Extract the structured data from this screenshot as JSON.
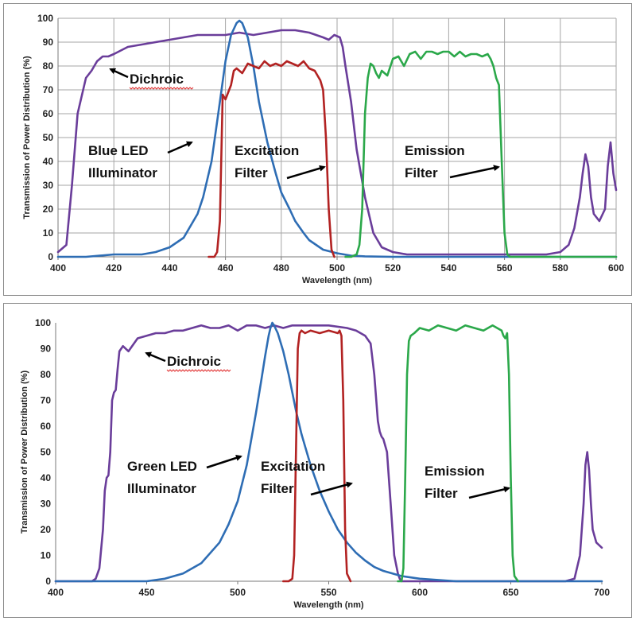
{
  "chart_data": [
    {
      "type": "line",
      "ylabel": "Transmission of Power Distribution (%)",
      "xlabel": "Wavelength (nm)",
      "xlim": [
        400,
        600
      ],
      "ylim": [
        0,
        100
      ],
      "xticks": [
        "400",
        "420",
        "440",
        "460",
        "480",
        "500",
        "520",
        "540",
        "560",
        "580",
        "600"
      ],
      "yticks": [
        "0",
        "10",
        "20",
        "30",
        "40",
        "50",
        "60",
        "70",
        "80",
        "90",
        "100"
      ],
      "grid": true,
      "annotations": [
        {
          "id": "dichroic",
          "text": [
            "Dichroic"
          ]
        },
        {
          "id": "led",
          "text": [
            "Blue LED",
            "Illuminator"
          ]
        },
        {
          "id": "excitation",
          "text": [
            "Excitation",
            "Filter"
          ]
        },
        {
          "id": "emission",
          "text": [
            "Emission",
            "Filter"
          ]
        }
      ],
      "series": [
        {
          "id": "dichroic",
          "color": "#6a3d9a",
          "x": [
            400,
            403,
            405,
            407,
            410,
            412,
            414,
            416,
            418,
            420,
            425,
            430,
            435,
            440,
            445,
            450,
            455,
            460,
            465,
            470,
            475,
            480,
            485,
            490,
            495,
            497,
            499,
            501,
            502,
            503,
            505,
            507,
            510,
            513,
            516,
            520,
            525,
            530,
            540,
            550,
            560,
            570,
            575,
            580,
            583,
            585,
            587,
            588,
            589,
            590,
            591,
            592,
            594,
            596,
            597,
            598,
            599,
            600
          ],
          "y": [
            2,
            5,
            30,
            60,
            75,
            78,
            82,
            84,
            84,
            85,
            88,
            89,
            90,
            91,
            92,
            93,
            93,
            93,
            94,
            93,
            94,
            95,
            95,
            94,
            92,
            91,
            93,
            92,
            88,
            80,
            65,
            45,
            25,
            10,
            4,
            2,
            1,
            1,
            1,
            1,
            1,
            1,
            1,
            2,
            5,
            12,
            25,
            35,
            43,
            38,
            25,
            18,
            15,
            20,
            38,
            48,
            35,
            28
          ]
        },
        {
          "id": "led",
          "color": "#2e6db4",
          "x": [
            400,
            405,
            410,
            420,
            430,
            435,
            440,
            445,
            450,
            452,
            455,
            458,
            460,
            462,
            464,
            465,
            466,
            468,
            470,
            472,
            475,
            478,
            480,
            483,
            485,
            488,
            490,
            495,
            500,
            505,
            510,
            520,
            530,
            540,
            550,
            600
          ],
          "y": [
            0,
            0,
            0,
            1,
            1,
            2,
            4,
            8,
            18,
            25,
            40,
            65,
            82,
            93,
            98,
            99,
            98,
            92,
            80,
            65,
            48,
            35,
            27,
            20,
            15,
            10,
            7,
            3,
            1.5,
            0.5,
            0.2,
            0,
            0,
            0,
            0,
            0
          ]
        },
        {
          "id": "excitation",
          "color": "#b22222",
          "x": [
            454,
            456,
            457,
            458,
            459,
            460,
            461,
            462,
            463,
            464,
            466,
            468,
            470,
            472,
            474,
            476,
            478,
            480,
            482,
            484,
            486,
            488,
            490,
            492,
            494,
            495,
            496,
            497,
            498,
            499
          ],
          "y": [
            0,
            0,
            2,
            15,
            68,
            66,
            69,
            72,
            78,
            79,
            77,
            81,
            80,
            79,
            82,
            80,
            81,
            80,
            82,
            81,
            80,
            82,
            79,
            78,
            74,
            70,
            50,
            20,
            3,
            0
          ]
        },
        {
          "id": "emission",
          "color": "#2ba84a",
          "x": [
            503,
            505,
            507,
            508,
            509,
            510,
            511,
            512,
            513,
            514,
            515,
            516,
            518,
            520,
            522,
            524,
            526,
            528,
            530,
            532,
            534,
            536,
            538,
            540,
            542,
            544,
            546,
            548,
            550,
            552,
            554,
            555,
            556,
            557,
            558,
            559,
            560,
            561,
            562,
            565,
            600
          ],
          "y": [
            0,
            0,
            1,
            5,
            20,
            60,
            75,
            81,
            80,
            77,
            75,
            78,
            76,
            83,
            84,
            80,
            85,
            86,
            83,
            86,
            86,
            85,
            86,
            86,
            84,
            86,
            84,
            85,
            85,
            84,
            85,
            83,
            80,
            75,
            72,
            40,
            10,
            1,
            0,
            0,
            0
          ]
        }
      ]
    },
    {
      "type": "line",
      "ylabel": "Transmission of Power Distribution (%)",
      "xlabel": "Wavelength (nm)",
      "xlim": [
        400,
        700
      ],
      "ylim": [
        0,
        100
      ],
      "xticks": [
        "400",
        "450",
        "500",
        "550",
        "600",
        "650",
        "700"
      ],
      "yticks": [
        "0",
        "10",
        "20",
        "30",
        "40",
        "50",
        "60",
        "70",
        "80",
        "90",
        "100"
      ],
      "grid": false,
      "annotations": [
        {
          "id": "dichroic",
          "text": [
            "Dichroic"
          ]
        },
        {
          "id": "led",
          "text": [
            "Green LED",
            "Illuminator"
          ]
        },
        {
          "id": "excitation",
          "text": [
            "Excitation",
            "Filter"
          ]
        },
        {
          "id": "emission",
          "text": [
            "Emission",
            "Filter"
          ]
        }
      ],
      "series": [
        {
          "id": "dichroic",
          "color": "#6a3d9a",
          "x": [
            400,
            420,
            422,
            424,
            426,
            427,
            428,
            429,
            430,
            431,
            432,
            433,
            434,
            435,
            437,
            440,
            445,
            450,
            455,
            460,
            465,
            470,
            480,
            485,
            490,
            495,
            500,
            505,
            510,
            515,
            520,
            525,
            530,
            540,
            550,
            560,
            565,
            570,
            573,
            575,
            577,
            578,
            579,
            580,
            582,
            584,
            586,
            588,
            589,
            590,
            591,
            592,
            595,
            600,
            650,
            680,
            685,
            688,
            690,
            691,
            692,
            693,
            694,
            695,
            697,
            700
          ],
          "y": [
            0,
            0,
            1,
            5,
            20,
            35,
            40,
            41,
            50,
            70,
            73,
            74,
            82,
            89,
            91,
            89,
            94,
            95,
            96,
            96,
            97,
            97,
            99,
            98,
            98,
            99,
            97,
            99,
            99,
            98,
            99,
            98,
            99,
            99,
            99,
            98,
            97,
            95,
            92,
            80,
            62,
            58,
            56,
            55,
            50,
            30,
            10,
            3,
            1,
            0,
            0,
            0,
            0,
            0,
            0,
            0,
            1,
            10,
            30,
            45,
            50,
            43,
            30,
            20,
            15,
            13
          ]
        },
        {
          "id": "led",
          "color": "#2e6db4",
          "x": [
            400,
            450,
            460,
            470,
            480,
            490,
            495,
            500,
            505,
            510,
            513,
            515,
            517,
            518,
            519,
            520,
            522,
            525,
            528,
            530,
            532,
            535,
            540,
            545,
            550,
            555,
            560,
            565,
            570,
            575,
            580,
            585,
            590,
            600,
            610,
            620,
            700
          ],
          "y": [
            0,
            0,
            1,
            3,
            7,
            15,
            22,
            31,
            45,
            65,
            78,
            87,
            95,
            98,
            100,
            99,
            96,
            89,
            80,
            73,
            66,
            57,
            45,
            35,
            27,
            20,
            15,
            11,
            8,
            5.5,
            4,
            3,
            2,
            1,
            0.5,
            0,
            0
          ]
        },
        {
          "id": "excitation",
          "color": "#b22222",
          "x": [
            525,
            528,
            530,
            531,
            532,
            533,
            534,
            535,
            537,
            540,
            545,
            550,
            555,
            556,
            557,
            558,
            559,
            560,
            562
          ],
          "y": [
            0,
            0,
            1,
            10,
            50,
            90,
            96,
            97,
            96,
            97,
            96,
            97,
            96,
            97,
            95,
            70,
            20,
            3,
            0
          ]
        },
        {
          "id": "emission",
          "color": "#2ba84a",
          "x": [
            588,
            590,
            591,
            592,
            593,
            594,
            595,
            597,
            600,
            605,
            610,
            615,
            620,
            625,
            630,
            635,
            640,
            645,
            646,
            647,
            648,
            649,
            650,
            651,
            652,
            654
          ],
          "y": [
            0,
            0,
            5,
            40,
            80,
            93,
            95,
            96,
            98,
            97,
            99,
            98,
            97,
            99,
            98,
            97,
            99,
            97,
            95,
            94,
            96,
            80,
            40,
            10,
            2,
            0
          ]
        }
      ]
    }
  ]
}
